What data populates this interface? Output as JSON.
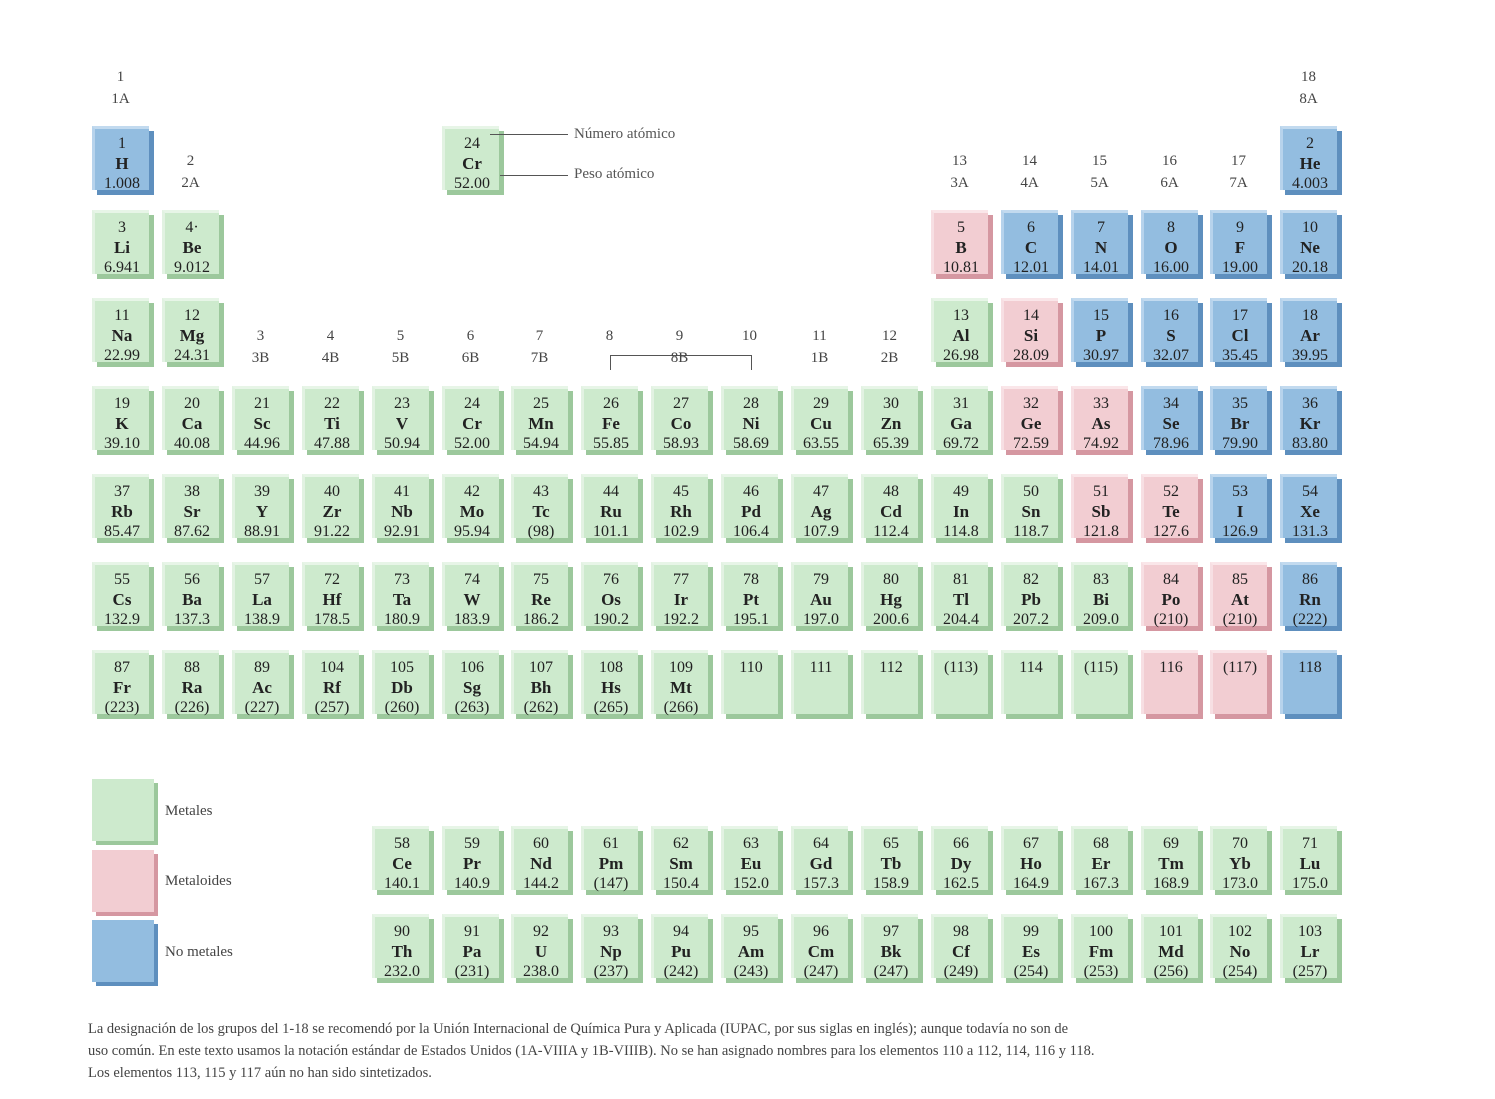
{
  "groups": [
    {
      "n": "1",
      "ab": "1A",
      "col": 0,
      "row": 0
    },
    {
      "n": "2",
      "ab": "2A",
      "col": 1,
      "row": 1
    },
    {
      "n": "3",
      "ab": "3B",
      "col": 2,
      "row": 3
    },
    {
      "n": "4",
      "ab": "4B",
      "col": 3,
      "row": 3
    },
    {
      "n": "5",
      "ab": "5B",
      "col": 4,
      "row": 3
    },
    {
      "n": "6",
      "ab": "6B",
      "col": 5,
      "row": 3
    },
    {
      "n": "7",
      "ab": "7B",
      "col": 6,
      "row": 3
    },
    {
      "n": "8",
      "ab": "",
      "col": 7,
      "row": 3
    },
    {
      "n": "9",
      "ab": "8B",
      "col": 8,
      "row": 3
    },
    {
      "n": "10",
      "ab": "",
      "col": 9,
      "row": 3
    },
    {
      "n": "11",
      "ab": "1B",
      "col": 10,
      "row": 3
    },
    {
      "n": "12",
      "ab": "2B",
      "col": 11,
      "row": 3
    },
    {
      "n": "13",
      "ab": "3A",
      "col": 12,
      "row": 1
    },
    {
      "n": "14",
      "ab": "4A",
      "col": 13,
      "row": 1
    },
    {
      "n": "15",
      "ab": "5A",
      "col": 14,
      "row": 1
    },
    {
      "n": "16",
      "ab": "6A",
      "col": 15,
      "row": 1
    },
    {
      "n": "17",
      "ab": "7A",
      "col": 16,
      "row": 1
    },
    {
      "n": "18",
      "ab": "8A",
      "col": 17,
      "row": 0
    }
  ],
  "key": {
    "number": "24",
    "symbol": "Cr",
    "weight": "52.00",
    "number_label": "Número atómico",
    "weight_label": "Peso atómico"
  },
  "elements": [
    [
      "1",
      "H",
      "1.008",
      0,
      1,
      "n"
    ],
    [
      "2",
      "He",
      "4.003",
      17,
      1,
      "n"
    ],
    [
      "3",
      "Li",
      "6.941",
      0,
      2,
      "m"
    ],
    [
      "4·",
      "Be",
      "9.012",
      1,
      2,
      "m"
    ],
    [
      "5",
      "B",
      "10.81",
      12,
      2,
      "md"
    ],
    [
      "6",
      "C",
      "12.01",
      13,
      2,
      "n"
    ],
    [
      "7",
      "N",
      "14.01",
      14,
      2,
      "n"
    ],
    [
      "8",
      "O",
      "16.00",
      15,
      2,
      "n"
    ],
    [
      "9",
      "F",
      "19.00",
      16,
      2,
      "n"
    ],
    [
      "10",
      "Ne",
      "20.18",
      17,
      2,
      "n"
    ],
    [
      "11",
      "Na",
      "22.99",
      0,
      3,
      "m"
    ],
    [
      "12",
      "Mg",
      "24.31",
      1,
      3,
      "m"
    ],
    [
      "13",
      "Al",
      "26.98",
      12,
      3,
      "m"
    ],
    [
      "14",
      "Si",
      "28.09",
      13,
      3,
      "md"
    ],
    [
      "15",
      "P",
      "30.97",
      14,
      3,
      "n"
    ],
    [
      "16",
      "S",
      "32.07",
      15,
      3,
      "n"
    ],
    [
      "17",
      "Cl",
      "35.45",
      16,
      3,
      "n"
    ],
    [
      "18",
      "Ar",
      "39.95",
      17,
      3,
      "n"
    ],
    [
      "19",
      "K",
      "39.10",
      0,
      4,
      "m"
    ],
    [
      "20",
      "Ca",
      "40.08",
      1,
      4,
      "m"
    ],
    [
      "21",
      "Sc",
      "44.96",
      2,
      4,
      "m"
    ],
    [
      "22",
      "Ti",
      "47.88",
      3,
      4,
      "m"
    ],
    [
      "23",
      "V",
      "50.94",
      4,
      4,
      "m"
    ],
    [
      "24",
      "Cr",
      "52.00",
      5,
      4,
      "m"
    ],
    [
      "25",
      "Mn",
      "54.94",
      6,
      4,
      "m"
    ],
    [
      "26",
      "Fe",
      "55.85",
      7,
      4,
      "m"
    ],
    [
      "27",
      "Co",
      "58.93",
      8,
      4,
      "m"
    ],
    [
      "28",
      "Ni",
      "58.69",
      9,
      4,
      "m"
    ],
    [
      "29",
      "Cu",
      "63.55",
      10,
      4,
      "m"
    ],
    [
      "30",
      "Zn",
      "65.39",
      11,
      4,
      "m"
    ],
    [
      "31",
      "Ga",
      "69.72",
      12,
      4,
      "m"
    ],
    [
      "32",
      "Ge",
      "72.59",
      13,
      4,
      "md"
    ],
    [
      "33",
      "As",
      "74.92",
      14,
      4,
      "md"
    ],
    [
      "34",
      "Se",
      "78.96",
      15,
      4,
      "n"
    ],
    [
      "35",
      "Br",
      "79.90",
      16,
      4,
      "n"
    ],
    [
      "36",
      "Kr",
      "83.80",
      17,
      4,
      "n"
    ],
    [
      "37",
      "Rb",
      "85.47",
      0,
      5,
      "m"
    ],
    [
      "38",
      "Sr",
      "87.62",
      1,
      5,
      "m"
    ],
    [
      "39",
      "Y",
      "88.91",
      2,
      5,
      "m"
    ],
    [
      "40",
      "Zr",
      "91.22",
      3,
      5,
      "m"
    ],
    [
      "41",
      "Nb",
      "92.91",
      4,
      5,
      "m"
    ],
    [
      "42",
      "Mo",
      "95.94",
      5,
      5,
      "m"
    ],
    [
      "43",
      "Tc",
      "(98)",
      6,
      5,
      "m"
    ],
    [
      "44",
      "Ru",
      "101.1",
      7,
      5,
      "m"
    ],
    [
      "45",
      "Rh",
      "102.9",
      8,
      5,
      "m"
    ],
    [
      "46",
      "Pd",
      "106.4",
      9,
      5,
      "m"
    ],
    [
      "47",
      "Ag",
      "107.9",
      10,
      5,
      "m"
    ],
    [
      "48",
      "Cd",
      "112.4",
      11,
      5,
      "m"
    ],
    [
      "49",
      "In",
      "114.8",
      12,
      5,
      "m"
    ],
    [
      "50",
      "Sn",
      "118.7",
      13,
      5,
      "m"
    ],
    [
      "51",
      "Sb",
      "121.8",
      14,
      5,
      "md"
    ],
    [
      "52",
      "Te",
      "127.6",
      15,
      5,
      "md"
    ],
    [
      "53",
      "I",
      "126.9",
      16,
      5,
      "n"
    ],
    [
      "54",
      "Xe",
      "131.3",
      17,
      5,
      "n"
    ],
    [
      "55",
      "Cs",
      "132.9",
      0,
      6,
      "m"
    ],
    [
      "56",
      "Ba",
      "137.3",
      1,
      6,
      "m"
    ],
    [
      "57",
      "La",
      "138.9",
      2,
      6,
      "m"
    ],
    [
      "72",
      "Hf",
      "178.5",
      3,
      6,
      "m"
    ],
    [
      "73",
      "Ta",
      "180.9",
      4,
      6,
      "m"
    ],
    [
      "74",
      "W",
      "183.9",
      5,
      6,
      "m"
    ],
    [
      "75",
      "Re",
      "186.2",
      6,
      6,
      "m"
    ],
    [
      "76",
      "Os",
      "190.2",
      7,
      6,
      "m"
    ],
    [
      "77",
      "Ir",
      "192.2",
      8,
      6,
      "m"
    ],
    [
      "78",
      "Pt",
      "195.1",
      9,
      6,
      "m"
    ],
    [
      "79",
      "Au",
      "197.0",
      10,
      6,
      "m"
    ],
    [
      "80",
      "Hg",
      "200.6",
      11,
      6,
      "m"
    ],
    [
      "81",
      "Tl",
      "204.4",
      12,
      6,
      "m"
    ],
    [
      "82",
      "Pb",
      "207.2",
      13,
      6,
      "m"
    ],
    [
      "83",
      "Bi",
      "209.0",
      14,
      6,
      "m"
    ],
    [
      "84",
      "Po",
      "(210)",
      15,
      6,
      "md"
    ],
    [
      "85",
      "At",
      "(210)",
      16,
      6,
      "md"
    ],
    [
      "86",
      "Rn",
      "(222)",
      17,
      6,
      "n"
    ],
    [
      "87",
      "Fr",
      "(223)",
      0,
      7,
      "m"
    ],
    [
      "88",
      "Ra",
      "(226)",
      1,
      7,
      "m"
    ],
    [
      "89",
      "Ac",
      "(227)",
      2,
      7,
      "m"
    ],
    [
      "104",
      "Rf",
      "(257)",
      3,
      7,
      "m"
    ],
    [
      "105",
      "Db",
      "(260)",
      4,
      7,
      "m"
    ],
    [
      "106",
      "Sg",
      "(263)",
      5,
      7,
      "m"
    ],
    [
      "107",
      "Bh",
      "(262)",
      6,
      7,
      "m"
    ],
    [
      "108",
      "Hs",
      "(265)",
      7,
      7,
      "m"
    ],
    [
      "109",
      "Mt",
      "(266)",
      8,
      7,
      "m"
    ],
    [
      "110",
      "",
      "",
      9,
      7,
      "m"
    ],
    [
      "111",
      "",
      "",
      10,
      7,
      "m"
    ],
    [
      "112",
      "",
      "",
      11,
      7,
      "m"
    ],
    [
      "(113)",
      "",
      "",
      12,
      7,
      "m"
    ],
    [
      "114",
      "",
      "",
      13,
      7,
      "m"
    ],
    [
      "(115)",
      "",
      "",
      14,
      7,
      "m"
    ],
    [
      "116",
      "",
      "",
      15,
      7,
      "md"
    ],
    [
      "(117)",
      "",
      "",
      16,
      7,
      "md"
    ],
    [
      "118",
      "",
      "",
      17,
      7,
      "n"
    ],
    [
      "58",
      "Ce",
      "140.1",
      4,
      9,
      "m"
    ],
    [
      "59",
      "Pr",
      "140.9",
      5,
      9,
      "m"
    ],
    [
      "60",
      "Nd",
      "144.2",
      6,
      9,
      "m"
    ],
    [
      "61",
      "Pm",
      "(147)",
      7,
      9,
      "m"
    ],
    [
      "62",
      "Sm",
      "150.4",
      8,
      9,
      "m"
    ],
    [
      "63",
      "Eu",
      "152.0",
      9,
      9,
      "m"
    ],
    [
      "64",
      "Gd",
      "157.3",
      10,
      9,
      "m"
    ],
    [
      "65",
      "Tb",
      "158.9",
      11,
      9,
      "m"
    ],
    [
      "66",
      "Dy",
      "162.5",
      12,
      9,
      "m"
    ],
    [
      "67",
      "Ho",
      "164.9",
      13,
      9,
      "m"
    ],
    [
      "68",
      "Er",
      "167.3",
      14,
      9,
      "m"
    ],
    [
      "69",
      "Tm",
      "168.9",
      15,
      9,
      "m"
    ],
    [
      "70",
      "Yb",
      "173.0",
      16,
      9,
      "m"
    ],
    [
      "71",
      "Lu",
      "175.0",
      17,
      9,
      "m"
    ],
    [
      "90",
      "Th",
      "232.0",
      4,
      10,
      "m"
    ],
    [
      "91",
      "Pa",
      "(231)",
      5,
      10,
      "m"
    ],
    [
      "92",
      "U",
      "238.0",
      6,
      10,
      "m"
    ],
    [
      "93",
      "Np",
      "(237)",
      7,
      10,
      "m"
    ],
    [
      "94",
      "Pu",
      "(242)",
      8,
      10,
      "m"
    ],
    [
      "95",
      "Am",
      "(243)",
      9,
      10,
      "m"
    ],
    [
      "96",
      "Cm",
      "(247)",
      10,
      10,
      "m"
    ],
    [
      "97",
      "Bk",
      "(247)",
      11,
      10,
      "m"
    ],
    [
      "98",
      "Cf",
      "(249)",
      12,
      10,
      "m"
    ],
    [
      "99",
      "Es",
      "(254)",
      13,
      10,
      "m"
    ],
    [
      "100",
      "Fm",
      "(253)",
      14,
      10,
      "m"
    ],
    [
      "101",
      "Md",
      "(256)",
      15,
      10,
      "m"
    ],
    [
      "102",
      "No",
      "(254)",
      16,
      10,
      "m"
    ],
    [
      "103",
      "Lr",
      "(257)",
      17,
      10,
      "m"
    ]
  ],
  "legend": {
    "metals": "Metales",
    "metalloids": "Metaloides",
    "nonmetals": "No metales"
  },
  "footnote": {
    "line1": "La designación de los grupos del 1-18 se recomendó por la Unión Internacional de Química Pura y Aplicada (IUPAC, por sus siglas en inglés); aunque todavía no son de",
    "line2": "uso común. En este texto usamos la notación estándar de Estados Unidos (1A-VIIIA y 1B-VIIIB). No se han asignado nombres para los elementos 110 a 112, 114, 116 y 118.",
    "line3": "Los elementos 113, 115 y 117 aún no han sido sintetizados."
  }
}
